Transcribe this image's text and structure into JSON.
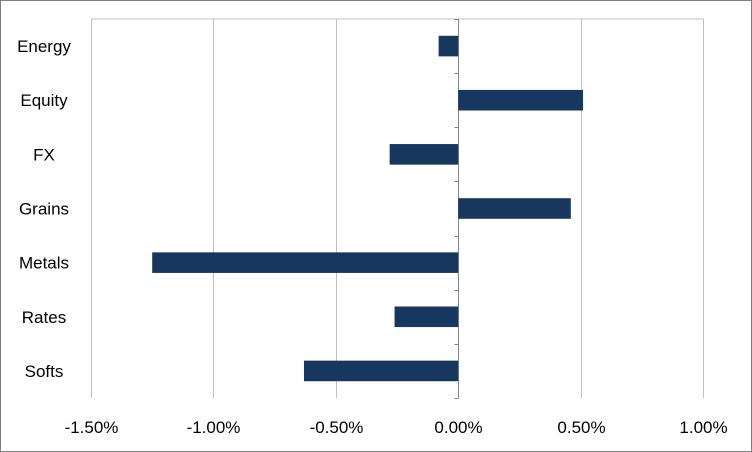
{
  "chart_data": {
    "type": "bar",
    "orientation": "horizontal",
    "categories": [
      "Energy",
      "Equity",
      "FX",
      "Grains",
      "Metals",
      "Rates",
      "Softs"
    ],
    "values": [
      -0.08,
      0.51,
      -0.28,
      0.46,
      -1.25,
      -0.26,
      -0.63
    ],
    "value_unit": "%",
    "xlim": [
      -1.5,
      1.0
    ],
    "x_ticks": [
      -1.5,
      -1.0,
      -0.5,
      0.0,
      0.5,
      1.0
    ],
    "x_tick_labels": [
      "-1.50%",
      "-1.00%",
      "-0.50%",
      "0.00%",
      "0.50%",
      "1.00%"
    ],
    "grid": "vertical",
    "legend": "none",
    "title": "",
    "xlabel": "",
    "ylabel": "",
    "colors": {
      "bar": "#17375e",
      "grid": "#bfbfbf",
      "border": "#7f7f7f"
    }
  }
}
